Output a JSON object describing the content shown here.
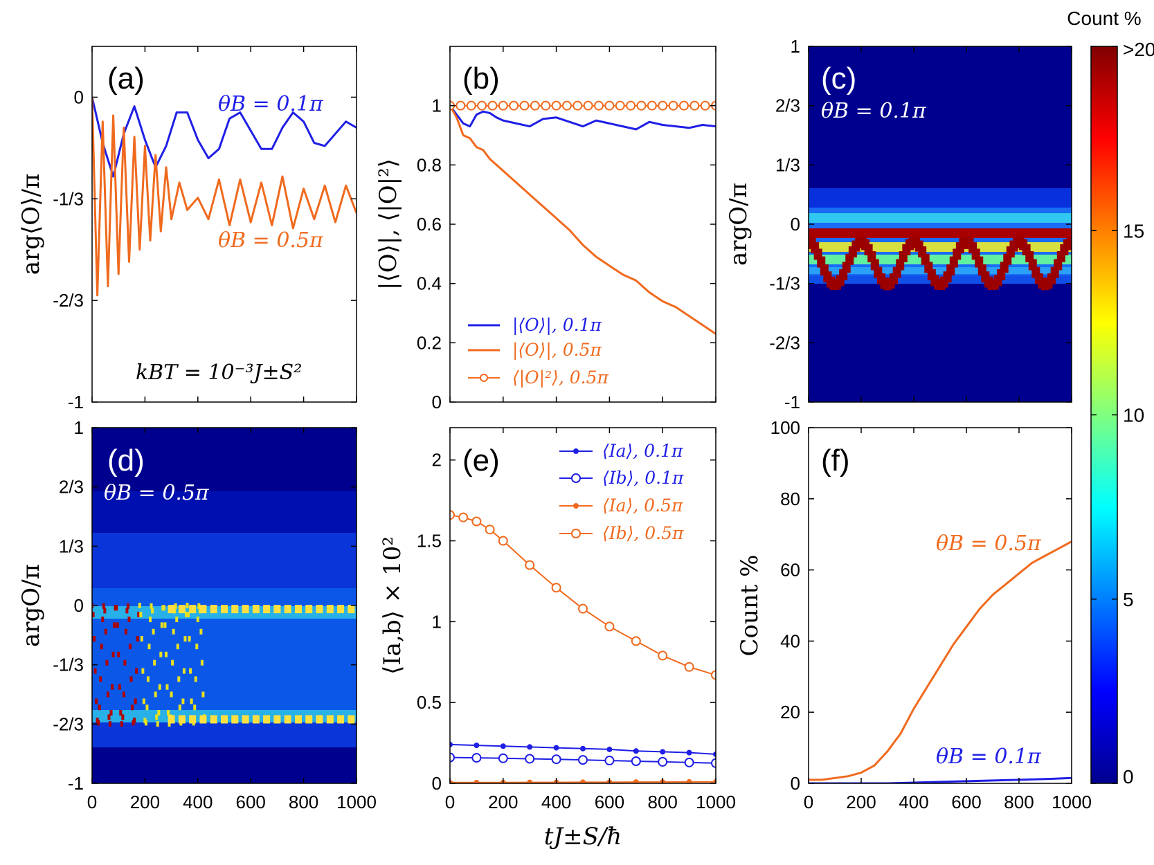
{
  "colors": {
    "blue": "#1f1fe6",
    "orange": "#f06a1e",
    "white": "#ffffff",
    "black": "#000000"
  },
  "time_axis": {
    "label": "tJ±S/ħ",
    "ticks": [
      "0",
      "200",
      "400",
      "600",
      "800",
      "1000"
    ]
  },
  "colorbar": {
    "title": "Count %",
    "range": [
      0,
      20
    ],
    "ticks": [
      "0",
      "5",
      "10",
      "15",
      ">20"
    ]
  },
  "chart_data": [
    {
      "id": "a",
      "panel_label": "(a)",
      "type": "line",
      "ylabel": "arg⟨O⟩/π",
      "xlim": [
        0,
        1000
      ],
      "ylim": [
        -1,
        0.1667
      ],
      "yticks": [
        "-1",
        "-2/3",
        "-1/3",
        "0"
      ],
      "annotations": [
        "θB = 0.1π",
        "θB = 0.5π",
        "kBT = 10⁻³J±S²"
      ],
      "series": [
        {
          "name": "θB = 0.1π",
          "color": "blue",
          "x": [
            0,
            40,
            80,
            120,
            160,
            200,
            240,
            280,
            320,
            360,
            400,
            440,
            480,
            520,
            560,
            600,
            640,
            680,
            720,
            760,
            800,
            840,
            880,
            920,
            960,
            1000
          ],
          "y": [
            0,
            -0.15,
            -0.26,
            -0.12,
            -0.03,
            -0.14,
            -0.23,
            -0.16,
            -0.05,
            -0.05,
            -0.14,
            -0.2,
            -0.17,
            -0.07,
            -0.05,
            -0.11,
            -0.17,
            -0.17,
            -0.1,
            -0.05,
            -0.08,
            -0.15,
            -0.16,
            -0.12,
            -0.08,
            -0.1
          ]
        },
        {
          "name": "θB = 0.5π",
          "color": "orange",
          "x": [
            0,
            20,
            40,
            60,
            80,
            100,
            120,
            140,
            160,
            180,
            200,
            220,
            240,
            260,
            280,
            300,
            330,
            360,
            400,
            440,
            480,
            520,
            560,
            600,
            640,
            680,
            720,
            760,
            800,
            840,
            880,
            920,
            960,
            1000
          ],
          "y": [
            0,
            -0.65,
            -0.08,
            -0.62,
            -0.06,
            -0.58,
            -0.1,
            -0.54,
            -0.13,
            -0.5,
            -0.16,
            -0.47,
            -0.19,
            -0.44,
            -0.23,
            -0.4,
            -0.28,
            -0.37,
            -0.33,
            -0.4,
            -0.27,
            -0.42,
            -0.27,
            -0.41,
            -0.28,
            -0.42,
            -0.26,
            -0.43,
            -0.3,
            -0.4,
            -0.29,
            -0.41,
            -0.29,
            -0.38
          ]
        }
      ]
    },
    {
      "id": "b",
      "panel_label": "(b)",
      "type": "line",
      "ylabel": "|⟨O⟩|, ⟨|O|²⟩",
      "xlim": [
        0,
        1000
      ],
      "ylim": [
        0,
        1.2
      ],
      "yticks": [
        "0",
        "0.2",
        "0.4",
        "0.6",
        "0.8",
        "1"
      ],
      "legend": [
        "|⟨O⟩|, 0.1π",
        "|⟨O⟩|, 0.5π",
        "⟨|O|²⟩, 0.5π"
      ],
      "series": [
        {
          "name": "|⟨O⟩|, 0.1π",
          "color": "blue",
          "x": [
            0,
            25,
            50,
            75,
            100,
            125,
            150,
            175,
            200,
            250,
            300,
            350,
            400,
            450,
            500,
            550,
            600,
            650,
            700,
            750,
            800,
            850,
            900,
            950,
            1000
          ],
          "y": [
            1,
            0.97,
            0.94,
            0.93,
            0.97,
            0.98,
            0.975,
            0.96,
            0.95,
            0.94,
            0.93,
            0.955,
            0.96,
            0.945,
            0.93,
            0.95,
            0.94,
            0.93,
            0.92,
            0.945,
            0.935,
            0.93,
            0.925,
            0.935,
            0.93
          ]
        },
        {
          "name": "|⟨O⟩|, 0.5π",
          "color": "orange",
          "x": [
            0,
            25,
            50,
            75,
            100,
            125,
            150,
            175,
            200,
            250,
            300,
            350,
            400,
            450,
            500,
            550,
            600,
            650,
            700,
            750,
            800,
            850,
            900,
            950,
            1000
          ],
          "y": [
            1,
            0.96,
            0.9,
            0.89,
            0.86,
            0.85,
            0.82,
            0.8,
            0.78,
            0.74,
            0.7,
            0.66,
            0.62,
            0.58,
            0.53,
            0.49,
            0.46,
            0.43,
            0.41,
            0.37,
            0.34,
            0.32,
            0.29,
            0.26,
            0.23
          ]
        },
        {
          "name": "⟨|O|²⟩, 0.5π",
          "color": "orange",
          "marker": "open-circle",
          "x": [
            0,
            40,
            80,
            120,
            160,
            200,
            240,
            280,
            320,
            360,
            400,
            440,
            480,
            520,
            560,
            600,
            640,
            680,
            720,
            760,
            800,
            840,
            880,
            920,
            960,
            1000
          ],
          "y": [
            1,
            1,
            1,
            1,
            1,
            1,
            1,
            1,
            1,
            1,
            1,
            1,
            1,
            1,
            1,
            1,
            1,
            1,
            1,
            1,
            1,
            1,
            1,
            1,
            1,
            1
          ]
        }
      ]
    },
    {
      "id": "c",
      "panel_label": "(c)",
      "type": "heatmap",
      "ylabel": "argO/π",
      "xlim": [
        0,
        1000
      ],
      "ylim": [
        -1,
        1
      ],
      "yticks": [
        "-1",
        "-2/3",
        "-1/3",
        "0",
        "1/3",
        "2/3",
        "1"
      ],
      "annotation": "θB = 0.1π",
      "description": "probability density of argO concentrated between -1/3 and 0 with oscillating dark-red ridge (period ~200)"
    },
    {
      "id": "d",
      "panel_label": "(d)",
      "type": "heatmap",
      "ylabel": "argO/π",
      "xlim": [
        0,
        1000
      ],
      "ylim": [
        -1,
        1
      ],
      "yticks": [
        "-1",
        "-2/3",
        "-1/3",
        "0",
        "1/3",
        "2/3",
        "1"
      ],
      "annotation": "θB = 0.5π",
      "description": "fast oscillations between 0 and -2/3 decaying into two bands near 0 and -2/3"
    },
    {
      "id": "e",
      "panel_label": "(e)",
      "type": "line",
      "ylabel": "⟨Ia,b⟩ × 10²",
      "xlim": [
        0,
        1000
      ],
      "ylim": [
        0,
        2.2
      ],
      "yticks": [
        "0",
        "0.5",
        "1",
        "1.5",
        "2"
      ],
      "legend": [
        "⟨Ia⟩, 0.1π",
        "⟨Ib⟩, 0.1π",
        "⟨Ia⟩, 0.5π",
        "⟨Ib⟩, 0.5π"
      ],
      "series": [
        {
          "name": "⟨Ia⟩, 0.1π",
          "color": "blue",
          "marker": "filled-dot",
          "x": [
            0,
            100,
            200,
            300,
            400,
            500,
            600,
            700,
            800,
            900,
            1000
          ],
          "y": [
            0.24,
            0.235,
            0.23,
            0.225,
            0.22,
            0.215,
            0.21,
            0.2,
            0.195,
            0.19,
            0.18
          ]
        },
        {
          "name": "⟨Ib⟩, 0.1π",
          "color": "blue",
          "marker": "open-circle",
          "x": [
            0,
            100,
            200,
            300,
            400,
            500,
            600,
            700,
            800,
            900,
            1000
          ],
          "y": [
            0.16,
            0.158,
            0.155,
            0.152,
            0.149,
            0.145,
            0.141,
            0.137,
            0.133,
            0.129,
            0.125
          ]
        },
        {
          "name": "⟨Ia⟩, 0.5π",
          "color": "orange",
          "marker": "filled-dot",
          "x": [
            0,
            100,
            200,
            300,
            400,
            500,
            600,
            700,
            800,
            900,
            1000
          ],
          "y": [
            0.005,
            0.005,
            0.005,
            0.006,
            0.006,
            0.007,
            0.007,
            0.008,
            0.008,
            0.009,
            0.009
          ]
        },
        {
          "name": "⟨Ib⟩, 0.5π",
          "color": "orange",
          "marker": "open-circle",
          "x": [
            0,
            50,
            100,
            150,
            200,
            300,
            400,
            500,
            600,
            700,
            800,
            900,
            1000
          ],
          "y": [
            1.66,
            1.645,
            1.62,
            1.57,
            1.5,
            1.35,
            1.21,
            1.08,
            0.97,
            0.88,
            0.79,
            0.72,
            0.67
          ]
        }
      ]
    },
    {
      "id": "f",
      "panel_label": "(f)",
      "type": "line",
      "ylabel": "Count %",
      "xlim": [
        0,
        1000
      ],
      "ylim": [
        0,
        100
      ],
      "yticks": [
        "0",
        "20",
        "40",
        "60",
        "80",
        "100"
      ],
      "annotations": [
        "θB = 0.5π",
        "θB = 0.1π"
      ],
      "series": [
        {
          "name": "θB = 0.5π",
          "color": "orange",
          "x": [
            0,
            50,
            100,
            150,
            200,
            250,
            300,
            350,
            400,
            450,
            500,
            550,
            600,
            650,
            700,
            750,
            800,
            850,
            900,
            950,
            1000
          ],
          "y": [
            1,
            1,
            1.5,
            2,
            3,
            5,
            9,
            14,
            21,
            27,
            33,
            39,
            44,
            49,
            53,
            56,
            59,
            62,
            64,
            66,
            68
          ]
        },
        {
          "name": "θB = 0.1π",
          "color": "blue",
          "x": [
            0,
            100,
            200,
            300,
            400,
            500,
            600,
            700,
            800,
            900,
            1000
          ],
          "y": [
            0,
            0,
            0,
            0,
            0.2,
            0.4,
            0.6,
            0.8,
            1,
            1.2,
            1.5
          ]
        }
      ]
    }
  ]
}
